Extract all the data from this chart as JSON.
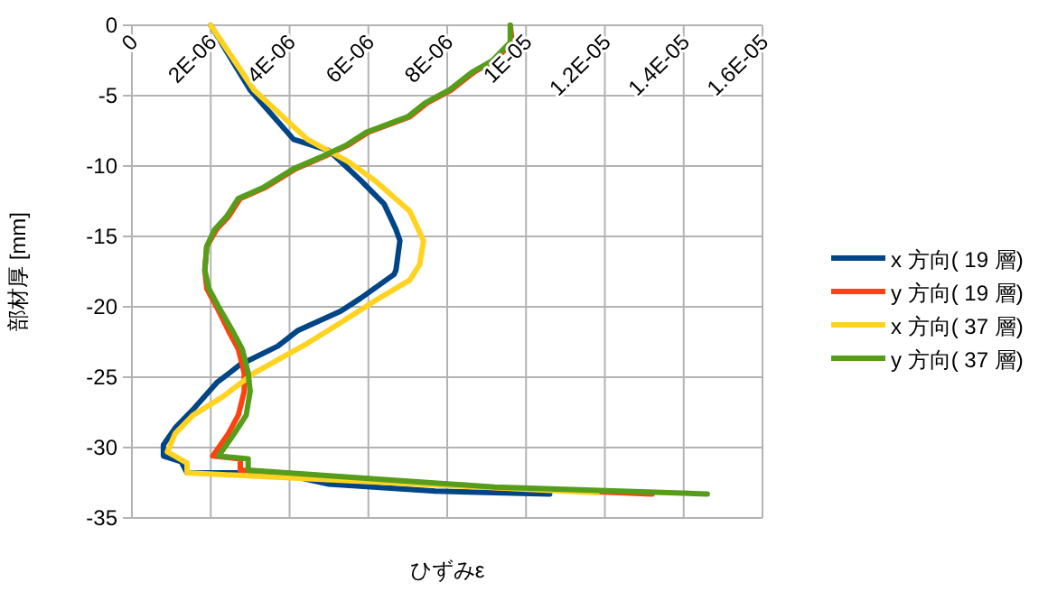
{
  "chart_data": {
    "type": "line",
    "xlabel": "ひずみε",
    "ylabel": "部材厚 [mm]",
    "xlim": [
      0,
      1.6e-05
    ],
    "ylim": [
      -35,
      0
    ],
    "xticks": [
      0,
      {
        "value": 2e-06,
        "label": "2E-06"
      },
      {
        "value": 4e-06,
        "label": "4E-06"
      },
      {
        "value": 6e-06,
        "label": "6E-06"
      },
      {
        "value": 8e-06,
        "label": "8E-06"
      },
      {
        "value": 1e-05,
        "label": "1E-05"
      },
      {
        "value": 1.2e-05,
        "label": "1.2E-05"
      },
      {
        "value": 1.4e-05,
        "label": "1.4E-05"
      },
      {
        "value": 1.6e-05,
        "label": "1.6E-05"
      }
    ],
    "yticks": [
      0,
      -5,
      -10,
      -15,
      -20,
      -25,
      -30,
      -35
    ],
    "grid": true,
    "legend": "right",
    "marker": "none",
    "line_style": "solid",
    "series": [
      {
        "name": "x 方向( 19 層)",
        "color": "#004586",
        "x": [
          2e-06,
          3e-06,
          4.1e-06,
          5e-06,
          5.8e-06,
          6.4e-06,
          6.7e-06,
          6.8e-06,
          6.7e-06,
          6.65e-06,
          5.8e-06,
          5.3e-06,
          4.2e-06,
          3.7e-06,
          2.75e-06,
          2.15e-06,
          1.55e-06,
          1.1e-06,
          8e-07,
          8e-07,
          1.25e-06,
          1.4e-06,
          3.7e-06,
          5e-06,
          7.7e-06,
          1.06e-05
        ],
        "values": [
          0,
          -4.6,
          -8.1,
          -8.9,
          -11,
          -12.7,
          -14.5,
          -15.3,
          -17.4,
          -17.7,
          -19.4,
          -20.3,
          -21.7,
          -22.8,
          -24.1,
          -25.4,
          -27.3,
          -28.6,
          -29.8,
          -30.6,
          -31,
          -31.8,
          -31.8,
          -32.6,
          -33.1,
          -33.3
        ]
      },
      {
        "name": "y 方向( 19 層)",
        "color": "#ff420e",
        "x": [
          9.6e-06,
          9.65e-06,
          9.2e-06,
          8.7e-06,
          8.1e-06,
          7.5e-06,
          7.05e-06,
          6e-06,
          5.5e-06,
          4.9e-06,
          4.15e-06,
          3.4e-06,
          2.75e-06,
          2.45e-06,
          2.15e-06,
          1.9e-06,
          1.85e-06,
          1.9e-06,
          2.15e-06,
          2.45e-06,
          2.7e-06,
          2.85e-06,
          2.85e-06,
          2.7e-06,
          2.45e-06,
          2.05e-06,
          2.75e-06,
          2.75e-06,
          5.8e-06,
          8.9e-06,
          1.32e-05
        ],
        "values": [
          0,
          -1.2,
          -2.5,
          -3.3,
          -4.6,
          -5.5,
          -6.5,
          -7.6,
          -8.5,
          -9.3,
          -10.2,
          -11.5,
          -12.3,
          -13.6,
          -14.5,
          -15.7,
          -17.4,
          -18.7,
          -20,
          -21.7,
          -23,
          -24.7,
          -26,
          -27.7,
          -29,
          -30.6,
          -30.8,
          -31.6,
          -32.2,
          -32.8,
          -33.3
        ]
      },
      {
        "name": "x 方向( 37 層)",
        "color": "#ffd320",
        "x": [
          2e-06,
          3.1e-06,
          4.45e-06,
          5.5e-06,
          6.15e-06,
          7.05e-06,
          7.4e-06,
          7.3e-06,
          7.05e-06,
          6.15e-06,
          5.2e-06,
          4.45e-06,
          3.1e-06,
          2.3e-06,
          1.55e-06,
          1.1e-06,
          9e-07,
          1.4e-06,
          1.4e-06,
          1.18e-05
        ],
        "values": [
          0,
          -4.6,
          -8.1,
          -9.7,
          -11,
          -13.2,
          -15.3,
          -17,
          -18.1,
          -19.6,
          -21.3,
          -22.6,
          -24.7,
          -26.4,
          -27.7,
          -29,
          -30.3,
          -31.1,
          -31.8,
          -33.2
        ]
      },
      {
        "name": "y 方向( 37 層)",
        "color": "#579d1c",
        "x": [
          9.6e-06,
          9.6e-06,
          9.15e-06,
          8.65e-06,
          8.05e-06,
          7.45e-06,
          7e-06,
          5.95e-06,
          5.45e-06,
          4.85e-06,
          4.1e-06,
          3.35e-06,
          2.7e-06,
          2.4e-06,
          2.1e-06,
          1.9e-06,
          1.85e-06,
          1.95e-06,
          2.2e-06,
          2.55e-06,
          2.8e-06,
          2.95e-06,
          3e-06,
          2.9e-06,
          2.6e-06,
          2.2e-06,
          2.95e-06,
          2.95e-06,
          6e-06,
          9.2e-06,
          1.46e-05
        ],
        "values": [
          0,
          -1.2,
          -2.5,
          -3.3,
          -4.6,
          -5.5,
          -6.5,
          -7.6,
          -8.5,
          -9.3,
          -10.2,
          -11.5,
          -12.3,
          -13.6,
          -14.5,
          -15.7,
          -17.4,
          -18.7,
          -20,
          -21.7,
          -23,
          -24.7,
          -26,
          -27.7,
          -29,
          -30.6,
          -30.8,
          -31.6,
          -32.2,
          -32.8,
          -33.3
        ]
      }
    ]
  }
}
